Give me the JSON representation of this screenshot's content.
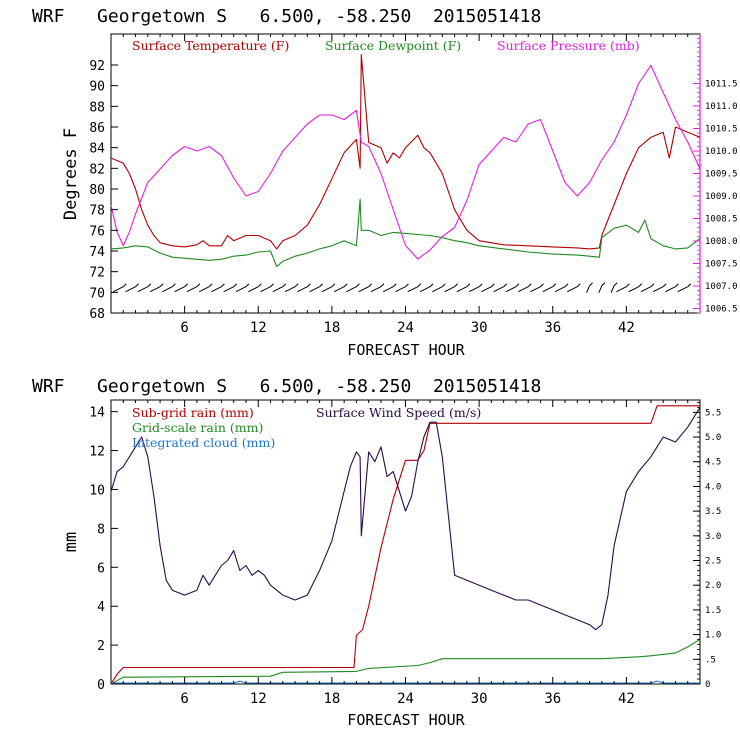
{
  "colors": {
    "temperature": "#b00000",
    "dewpoint": "#1f8a1f",
    "pressure": "#e020e0",
    "subgrid_rain": "#b00000",
    "grid_rain": "#1f8a1f",
    "cloud": "#1f78d0",
    "wind": "#2a0a48",
    "wind_barb": "#000000"
  },
  "chart_data": [
    {
      "type": "line",
      "title": "WRF   Georgetown S   6.500, -58.250  2015051418",
      "xlabel": "FORECAST HOUR",
      "ylabel": "Degrees F",
      "xlim": [
        0,
        48
      ],
      "xticks": [
        6,
        12,
        18,
        24,
        30,
        36,
        42
      ],
      "ylim": [
        68,
        95
      ],
      "yticks": [
        68,
        70,
        72,
        74,
        76,
        78,
        80,
        82,
        84,
        86,
        88,
        90,
        92
      ],
      "y2lim": [
        1006.4,
        1012.6
      ],
      "y2ticks": [
        "1006.5",
        "1007.0",
        "1007.5",
        "1008.0",
        "1008.5",
        "1009.0",
        "1009.5",
        "1010.0",
        "1010.5",
        "1011.0",
        "1011.5"
      ],
      "legend": [
        "Surface Temperature (F)",
        "Surface Dewpoint (F)",
        "Surface Pressure (mb)"
      ],
      "legend_position": "top",
      "wind_barbs_row_y": 70.3,
      "series": [
        {
          "name": "Surface Temperature (F)",
          "axis": "left",
          "x": [
            0,
            1,
            1.5,
            2,
            2.5,
            3,
            3.5,
            4,
            5,
            6,
            7,
            7.5,
            8,
            9,
            9.5,
            10,
            11,
            12,
            13,
            13.5,
            14,
            15,
            16,
            17,
            18,
            19,
            20,
            20.3,
            20.4,
            21,
            22,
            22.5,
            23,
            23.5,
            24,
            25,
            25.5,
            26,
            27,
            28,
            29,
            30,
            32,
            34,
            36,
            38,
            39,
            39.8,
            40,
            41,
            42,
            43,
            44,
            45,
            45.5,
            46,
            47,
            48
          ],
          "values": [
            83,
            82.5,
            81.5,
            80,
            78,
            76.5,
            75.5,
            74.8,
            74.5,
            74.4,
            74.6,
            75,
            74.5,
            74.5,
            75.5,
            75,
            75.5,
            75.5,
            75,
            74.2,
            75,
            75.5,
            76.5,
            78.5,
            81,
            83.5,
            84.8,
            82,
            93,
            84.5,
            84,
            82.5,
            83.5,
            83,
            84,
            85.2,
            84,
            83.5,
            81.5,
            78,
            76,
            75,
            74.6,
            74.5,
            74.4,
            74.3,
            74.2,
            74.3,
            75.5,
            78.5,
            81.5,
            84,
            85,
            85.5,
            83,
            86,
            85.5,
            85
          ]
        },
        {
          "name": "Surface Dewpoint (F)",
          "axis": "left",
          "x": [
            0,
            1,
            2,
            3,
            4,
            5,
            6,
            7,
            8,
            9,
            10,
            11,
            12,
            13,
            13.5,
            14,
            15,
            16,
            17,
            18,
            19,
            20,
            20.3,
            20.4,
            21,
            22,
            23,
            24,
            25,
            26,
            27,
            28,
            29,
            30,
            32,
            34,
            36,
            38,
            39,
            39.8,
            40,
            41,
            42,
            43,
            43.5,
            44,
            45,
            46,
            47,
            48
          ],
          "values": [
            74.2,
            74.3,
            74.5,
            74.4,
            73.8,
            73.4,
            73.3,
            73.2,
            73.1,
            73.2,
            73.5,
            73.6,
            73.9,
            74,
            72.5,
            73,
            73.5,
            73.8,
            74.2,
            74.5,
            75,
            74.5,
            79,
            76,
            76,
            75.5,
            75.8,
            75.7,
            75.6,
            75.5,
            75.3,
            75,
            74.8,
            74.5,
            74.2,
            73.9,
            73.7,
            73.6,
            73.5,
            73.4,
            75.3,
            76.2,
            76.5,
            75.8,
            77,
            75.2,
            74.5,
            74.2,
            74.3,
            75.2
          ]
        },
        {
          "name": "Surface Pressure (mb)",
          "axis": "right",
          "x": [
            0,
            0.5,
            1,
            1.5,
            2,
            3,
            4,
            5,
            6,
            7,
            8,
            9,
            10,
            11,
            12,
            13,
            14,
            15,
            16,
            17,
            18,
            19,
            19.5,
            20,
            20.4,
            21,
            22,
            23,
            24,
            25,
            26,
            27,
            28,
            29,
            30,
            31,
            32,
            33,
            34,
            35,
            36,
            37,
            38,
            39,
            40,
            41,
            42,
            43,
            44,
            45,
            46,
            47,
            48
          ],
          "values": [
            1008.8,
            1008.2,
            1007.9,
            1008.2,
            1008.6,
            1009.3,
            1009.6,
            1009.9,
            1010.1,
            1010.0,
            1010.1,
            1009.9,
            1009.4,
            1009.0,
            1009.1,
            1009.5,
            1010.0,
            1010.3,
            1010.6,
            1010.8,
            1010.8,
            1010.7,
            1010.8,
            1010.9,
            1010.2,
            1010.1,
            1009.5,
            1008.7,
            1007.9,
            1007.6,
            1007.8,
            1008.1,
            1008.3,
            1008.9,
            1009.7,
            1010.0,
            1010.3,
            1010.2,
            1010.6,
            1010.7,
            1010.0,
            1009.3,
            1009.0,
            1009.3,
            1009.8,
            1010.2,
            1010.8,
            1011.5,
            1011.9,
            1011.3,
            1010.7,
            1010.2,
            1009.6
          ]
        }
      ]
    },
    {
      "type": "line",
      "title": "WRF   Georgetown S   6.500, -58.250  2015051418",
      "xlabel": "FORECAST HOUR",
      "ylabel": "mm",
      "xlim": [
        0,
        48
      ],
      "xticks": [
        6,
        12,
        18,
        24,
        30,
        36,
        42
      ],
      "ylim": [
        0,
        14.6
      ],
      "yticks": [
        0,
        2,
        4,
        6,
        8,
        10,
        12,
        14
      ],
      "y2lim": [
        0,
        5.75
      ],
      "y2ticks": [
        "0",
        ".5",
        "1.0",
        "1.5",
        "2.0",
        "2.5",
        "3.0",
        "3.5",
        "4.0",
        "4.5",
        "5.0",
        "5.5"
      ],
      "legend": [
        "Sub-grid rain (mm)",
        "Surface Wind Speed (m/s)",
        "Grid-scale rain (mm)",
        "Integrated cloud (mm)"
      ],
      "legend_position": "top-left",
      "series": [
        {
          "name": "Sub-grid rain (mm)",
          "axis": "left",
          "x": [
            0,
            0.5,
            1,
            19.8,
            20,
            20.5,
            21,
            22,
            23,
            24,
            25,
            25.5,
            26,
            27,
            44,
            44.5,
            48
          ],
          "values": [
            0,
            0.5,
            0.85,
            0.85,
            2.5,
            2.8,
            4,
            7,
            9.5,
            11.5,
            11.5,
            12,
            13.4,
            13.4,
            13.4,
            14.3,
            14.3
          ]
        },
        {
          "name": "Grid-scale rain (mm)",
          "axis": "left",
          "x": [
            0,
            1,
            13,
            14,
            20,
            21,
            25,
            26,
            27,
            40,
            43,
            44,
            46,
            47,
            48
          ],
          "values": [
            0,
            0.35,
            0.4,
            0.6,
            0.65,
            0.8,
            0.95,
            1.1,
            1.3,
            1.3,
            1.4,
            1.45,
            1.6,
            1.9,
            2.3
          ]
        },
        {
          "name": "Integrated cloud (mm)",
          "axis": "left",
          "x": [
            0,
            5,
            10,
            10.5,
            11,
            15,
            20,
            25,
            30,
            35,
            40,
            44,
            44.5,
            45,
            48
          ],
          "values": [
            0.05,
            0.05,
            0.05,
            0.15,
            0.05,
            0.05,
            0.05,
            0.05,
            0.05,
            0.05,
            0.05,
            0.05,
            0.15,
            0.05,
            0.05
          ]
        },
        {
          "name": "Surface Wind Speed (m/s)",
          "axis": "right",
          "x": [
            0,
            0.5,
            1,
            1.5,
            2,
            2.5,
            3,
            3.5,
            4,
            4.5,
            5,
            6,
            7,
            7.5,
            8,
            8.5,
            9,
            9.5,
            10,
            10.5,
            11,
            11.5,
            12,
            12.5,
            13,
            14,
            15,
            16,
            17,
            18,
            18.5,
            19,
            19.5,
            20,
            20.3,
            20.4,
            21,
            21.5,
            22,
            22.5,
            23,
            23.5,
            24,
            24.5,
            25,
            25.5,
            26,
            26.5,
            27,
            28,
            29,
            30,
            31,
            32,
            33,
            34,
            35,
            36,
            37,
            38,
            39,
            39.5,
            40,
            40.5,
            41,
            42,
            43,
            44,
            45,
            46,
            47,
            48
          ],
          "values": [
            3.9,
            4.3,
            4.4,
            4.6,
            4.8,
            5.0,
            4.6,
            3.8,
            2.8,
            2.1,
            1.9,
            1.8,
            1.9,
            2.2,
            2.0,
            2.2,
            2.4,
            2.5,
            2.7,
            2.3,
            2.4,
            2.2,
            2.3,
            2.2,
            2.0,
            1.8,
            1.7,
            1.8,
            2.3,
            2.9,
            3.4,
            3.9,
            4.4,
            4.7,
            4.6,
            3.0,
            4.7,
            4.5,
            4.8,
            4.2,
            4.3,
            3.9,
            3.5,
            3.8,
            4.5,
            5.0,
            5.3,
            5.3,
            4.6,
            2.2,
            2.1,
            2.0,
            1.9,
            1.8,
            1.7,
            1.7,
            1.6,
            1.5,
            1.4,
            1.3,
            1.2,
            1.1,
            1.2,
            1.8,
            2.8,
            3.9,
            4.3,
            4.6,
            5.0,
            4.9,
            5.2,
            5.6
          ]
        }
      ]
    }
  ]
}
